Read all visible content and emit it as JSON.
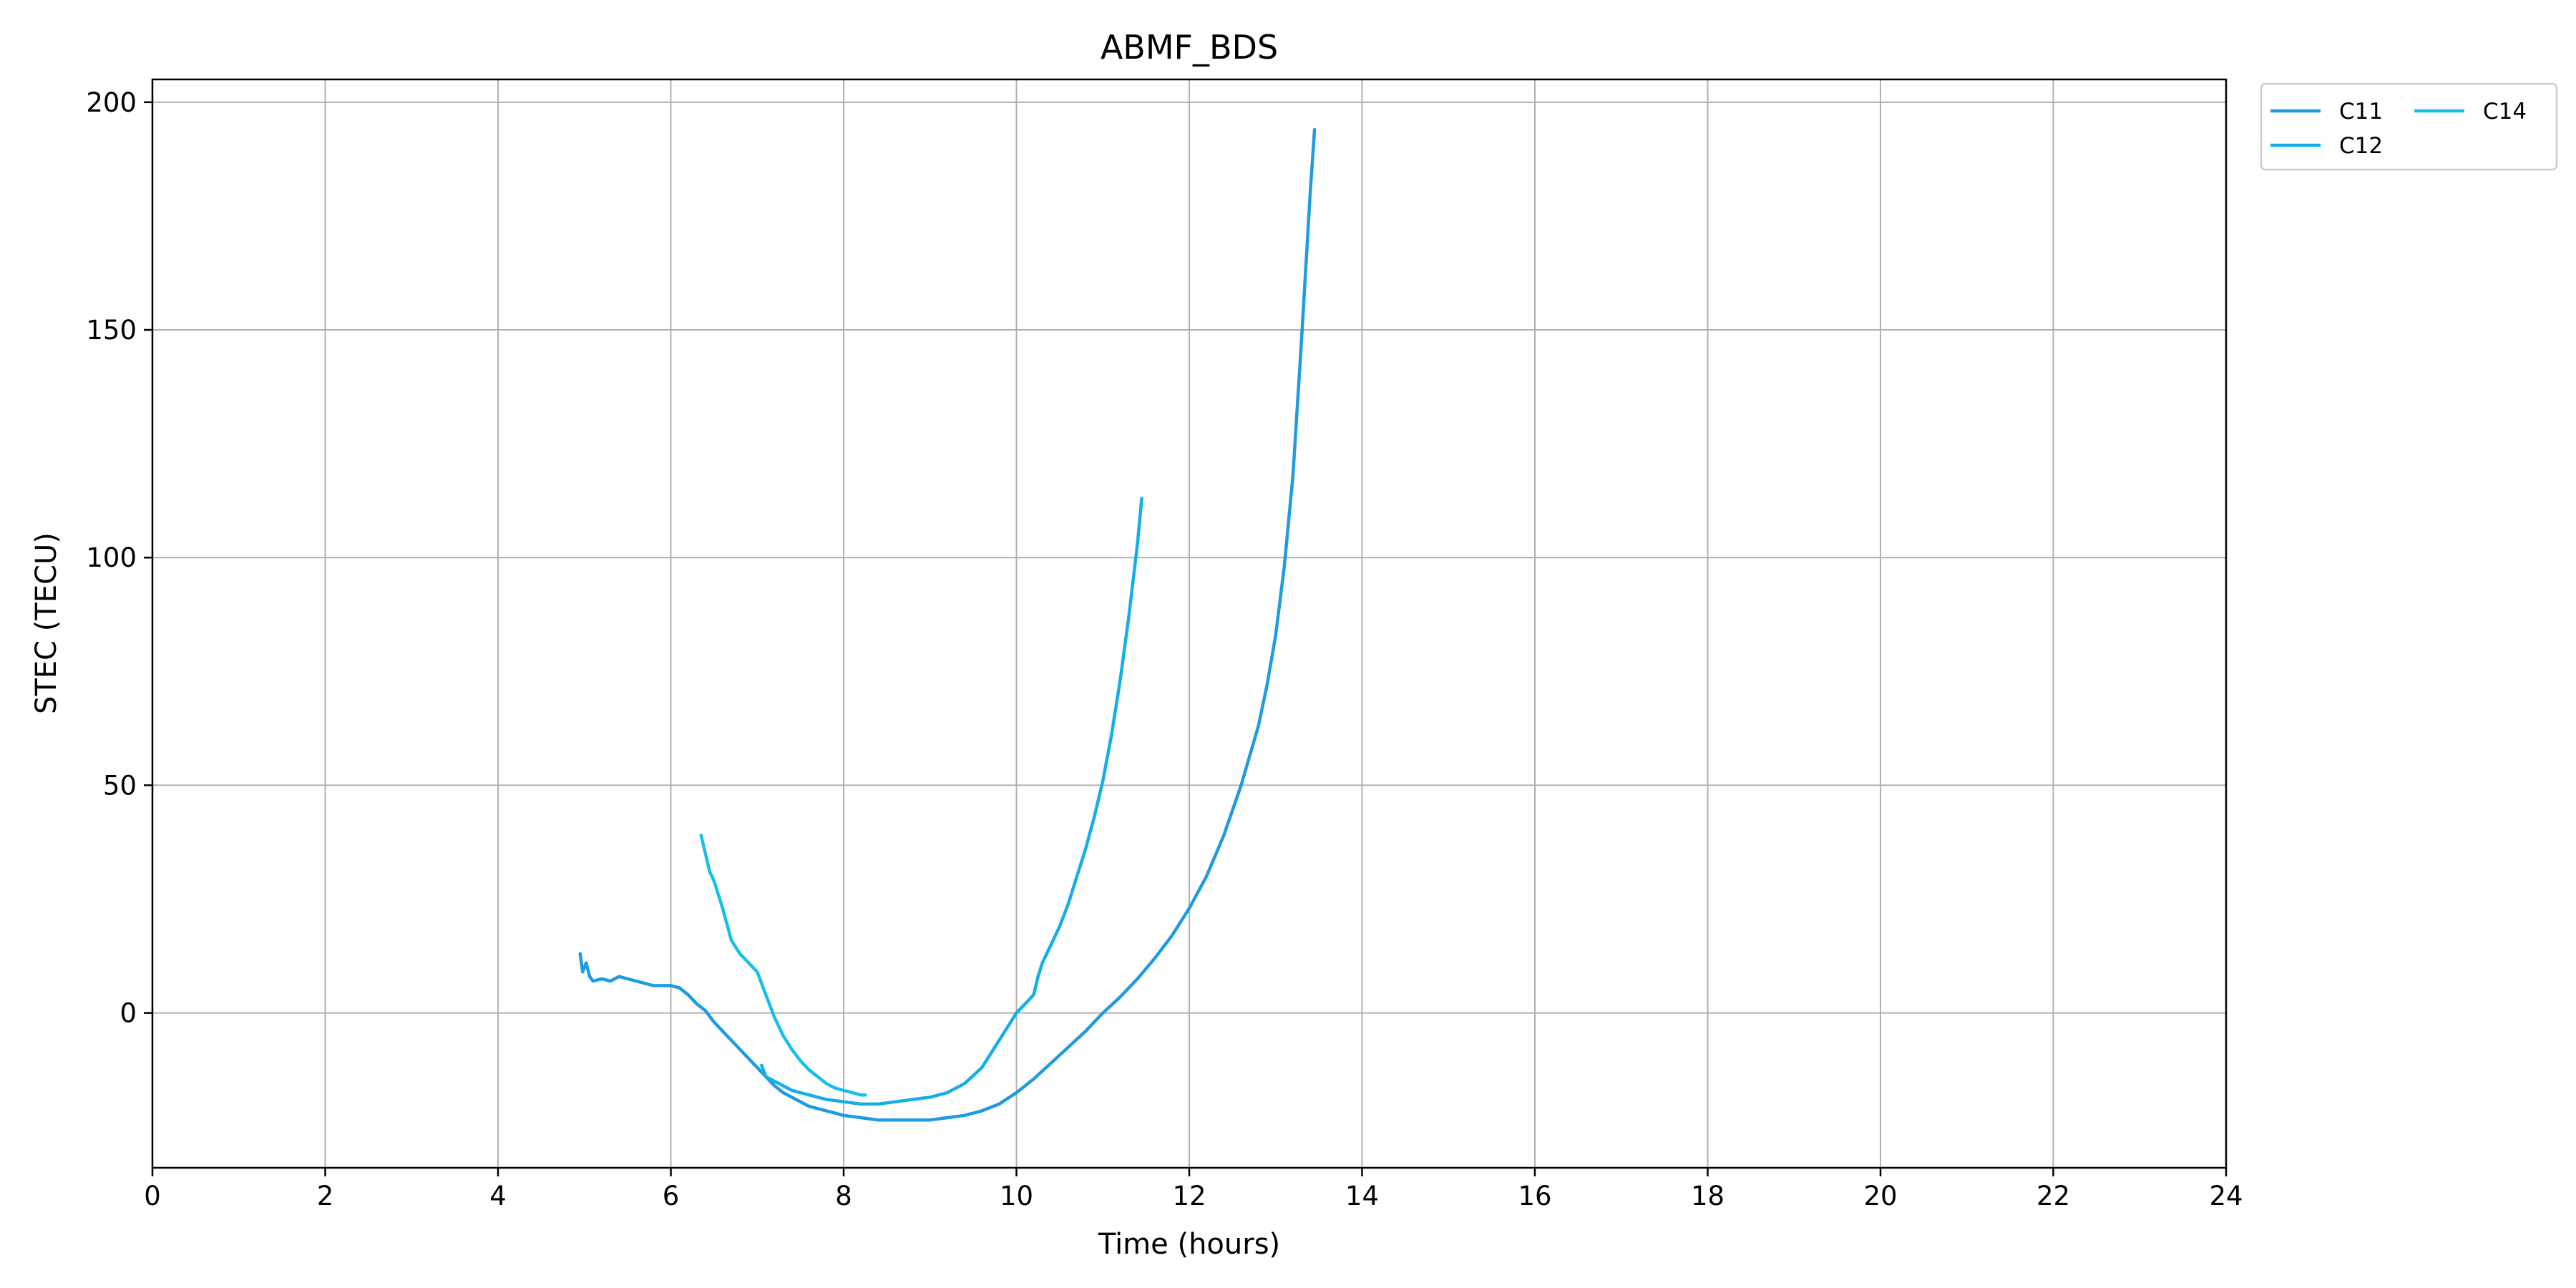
{
  "chart_data": {
    "type": "line",
    "title": "ABMF_BDS",
    "xlabel": "Time (hours)",
    "ylabel": "STEC (TECU)",
    "xlim": [
      0,
      24
    ],
    "ylim": [
      -34,
      205
    ],
    "xticks": [
      0,
      2,
      4,
      6,
      8,
      10,
      12,
      14,
      16,
      18,
      20,
      22,
      24
    ],
    "yticks": [
      0,
      50,
      100,
      150,
      200
    ],
    "grid": true,
    "legend": {
      "placement": "outside-top-right",
      "columns": 2
    },
    "series": [
      {
        "name": "C11",
        "color": "#1f9be0",
        "x": [
          4.95,
          4.98,
          5.02,
          5.06,
          5.1,
          5.2,
          5.3,
          5.4,
          5.5,
          5.6,
          5.7,
          5.8,
          5.9,
          6.0,
          6.1,
          6.2,
          6.3,
          6.4,
          6.5,
          6.6,
          6.7,
          6.8,
          6.9,
          7.0,
          7.1,
          7.2,
          7.3,
          7.4,
          7.5,
          7.6,
          7.7,
          7.8,
          7.9,
          8.0,
          8.2,
          8.4,
          8.6,
          8.8,
          9.0,
          9.2,
          9.4,
          9.6,
          9.8,
          10.0,
          10.2,
          10.4,
          10.6,
          10.8,
          11.0,
          11.2,
          11.4,
          11.6,
          11.8,
          12.0,
          12.2,
          12.4,
          12.6,
          12.8,
          12.9,
          13.0,
          13.1,
          13.2,
          13.3,
          13.4,
          13.45
        ],
        "y": [
          13,
          9,
          11,
          8,
          7,
          7.5,
          7,
          8,
          7.5,
          7,
          6.5,
          6,
          6,
          6,
          5.5,
          4,
          2,
          0.5,
          -2,
          -4,
          -6,
          -8,
          -10,
          -12,
          -14,
          -16,
          -17.5,
          -18.5,
          -19.5,
          -20.5,
          -21,
          -21.5,
          -22,
          -22.5,
          -23,
          -23.5,
          -23.5,
          -23.5,
          -23.5,
          -23,
          -22.5,
          -21.5,
          -20,
          -17.5,
          -14.5,
          -11,
          -7.5,
          -4,
          0,
          3.5,
          7.5,
          12,
          17,
          23,
          30,
          39,
          50,
          63,
          72,
          83,
          98,
          118,
          148,
          180,
          194
        ]
      },
      {
        "name": "C12",
        "color": "#15aee8",
        "x": [
          7.05,
          7.1,
          7.2,
          7.3,
          7.4,
          7.5,
          7.6,
          7.8,
          8.0,
          8.2,
          8.4,
          8.6,
          8.8,
          9.0,
          9.2,
          9.4,
          9.6,
          9.8,
          10.0,
          10.1,
          10.2,
          10.25,
          10.3,
          10.4,
          10.5,
          10.6,
          10.7,
          10.8,
          10.9,
          11.0,
          11.1,
          11.2,
          11.3,
          11.4,
          11.45
        ],
        "y": [
          -11.5,
          -14,
          -15,
          -16,
          -17,
          -17.5,
          -18,
          -19,
          -19.5,
          -20,
          -20,
          -19.5,
          -19,
          -18.5,
          -17.5,
          -15.5,
          -12,
          -6,
          0,
          2,
          4,
          8,
          11,
          15,
          19,
          24,
          30,
          36,
          43,
          51,
          61,
          73,
          87,
          103,
          113
        ]
      },
      {
        "name": "C14",
        "color": "#17c0e8",
        "x": [
          6.35,
          6.4,
          6.45,
          6.5,
          6.6,
          6.7,
          6.8,
          6.9,
          7.0,
          7.1,
          7.2,
          7.3,
          7.4,
          7.5,
          7.6,
          7.7,
          7.8,
          7.9,
          8.0,
          8.1,
          8.2,
          8.25
        ],
        "y": [
          39,
          35,
          31,
          29,
          23,
          16,
          13,
          11,
          9,
          4,
          -1,
          -5,
          -8,
          -10.5,
          -12.5,
          -14,
          -15.5,
          -16.5,
          -17,
          -17.5,
          -18,
          -18
        ]
      }
    ]
  }
}
